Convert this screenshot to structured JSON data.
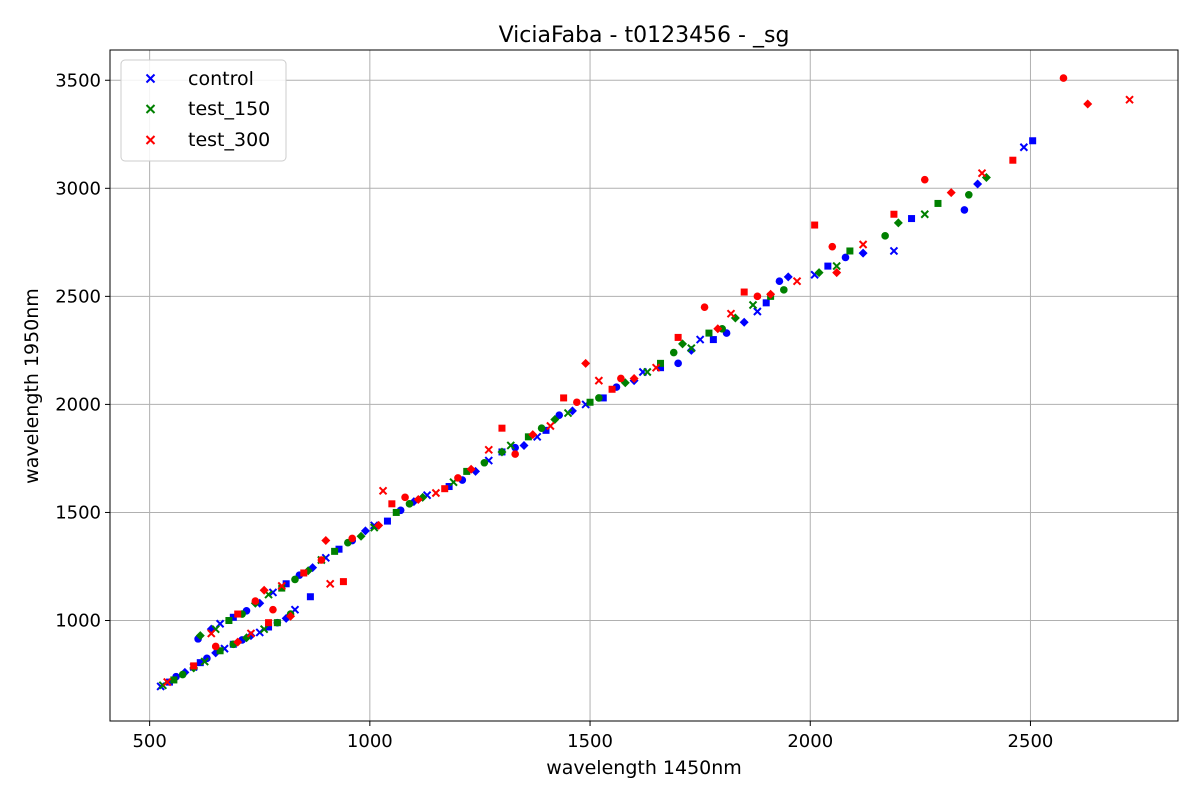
{
  "chart_data": {
    "type": "scatter",
    "title": "ViciaFaba - t0123456 - _sg",
    "xlabel": "wavelength 1450nm",
    "ylabel": "wavelength 1950nm",
    "xlim": [
      410,
      2835
    ],
    "ylim": [
      535,
      3640
    ],
    "xticks": [
      500,
      1000,
      1500,
      2000,
      2500
    ],
    "yticks": [
      1000,
      1500,
      2000,
      2500,
      3000,
      3500
    ],
    "grid": true,
    "legend_position": "top-left",
    "legend": {
      "control": "control",
      "test_150": "test_150",
      "test_300": "test_300"
    },
    "series": [
      {
        "name": "control",
        "color": "#0000ff",
        "points": [
          [
            525,
            695
          ],
          [
            545,
            715
          ],
          [
            560,
            740
          ],
          [
            580,
            760
          ],
          [
            600,
            785
          ],
          [
            615,
            805
          ],
          [
            630,
            825
          ],
          [
            650,
            850
          ],
          [
            670,
            870
          ],
          [
            690,
            890
          ],
          [
            710,
            910
          ],
          [
            730,
            930
          ],
          [
            750,
            945
          ],
          [
            770,
            970
          ],
          [
            790,
            990
          ],
          [
            810,
            1010
          ],
          [
            830,
            1050
          ],
          [
            865,
            1110
          ],
          [
            610,
            915
          ],
          [
            640,
            960
          ],
          [
            660,
            985
          ],
          [
            690,
            1015
          ],
          [
            720,
            1045
          ],
          [
            750,
            1080
          ],
          [
            780,
            1130
          ],
          [
            810,
            1170
          ],
          [
            840,
            1210
          ],
          [
            870,
            1245
          ],
          [
            900,
            1290
          ],
          [
            930,
            1330
          ],
          [
            960,
            1370
          ],
          [
            990,
            1415
          ],
          [
            1010,
            1440
          ],
          [
            1040,
            1460
          ],
          [
            1070,
            1510
          ],
          [
            1100,
            1550
          ],
          [
            1130,
            1580
          ],
          [
            1180,
            1620
          ],
          [
            1210,
            1650
          ],
          [
            1240,
            1690
          ],
          [
            1270,
            1740
          ],
          [
            1300,
            1780
          ],
          [
            1330,
            1800
          ],
          [
            1350,
            1810
          ],
          [
            1380,
            1850
          ],
          [
            1400,
            1880
          ],
          [
            1430,
            1950
          ],
          [
            1460,
            1970
          ],
          [
            1490,
            2000
          ],
          [
            1530,
            2030
          ],
          [
            1560,
            2080
          ],
          [
            1600,
            2110
          ],
          [
            1620,
            2150
          ],
          [
            1660,
            2170
          ],
          [
            1700,
            2190
          ],
          [
            1730,
            2250
          ],
          [
            1750,
            2300
          ],
          [
            1780,
            2300
          ],
          [
            1810,
            2330
          ],
          [
            1850,
            2380
          ],
          [
            1880,
            2430
          ],
          [
            1900,
            2470
          ],
          [
            1930,
            2570
          ],
          [
            1950,
            2590
          ],
          [
            2010,
            2600
          ],
          [
            2040,
            2640
          ],
          [
            2080,
            2680
          ],
          [
            2120,
            2700
          ],
          [
            2190,
            2710
          ],
          [
            2230,
            2860
          ],
          [
            2350,
            2900
          ],
          [
            2380,
            3020
          ],
          [
            2485,
            3190
          ],
          [
            2505,
            3220
          ]
        ]
      },
      {
        "name": "test_150",
        "color": "#008000",
        "points": [
          [
            530,
            700
          ],
          [
            555,
            725
          ],
          [
            575,
            750
          ],
          [
            600,
            780
          ],
          [
            625,
            810
          ],
          [
            660,
            860
          ],
          [
            690,
            890
          ],
          [
            720,
            920
          ],
          [
            760,
            960
          ],
          [
            790,
            990
          ],
          [
            820,
            1030
          ],
          [
            615,
            930
          ],
          [
            650,
            960
          ],
          [
            680,
            1000
          ],
          [
            710,
            1030
          ],
          [
            740,
            1080
          ],
          [
            770,
            1120
          ],
          [
            800,
            1150
          ],
          [
            830,
            1190
          ],
          [
            860,
            1230
          ],
          [
            890,
            1280
          ],
          [
            920,
            1320
          ],
          [
            950,
            1360
          ],
          [
            980,
            1390
          ],
          [
            1010,
            1430
          ],
          [
            1060,
            1500
          ],
          [
            1090,
            1540
          ],
          [
            1120,
            1570
          ],
          [
            1190,
            1640
          ],
          [
            1220,
            1690
          ],
          [
            1260,
            1730
          ],
          [
            1300,
            1780
          ],
          [
            1320,
            1810
          ],
          [
            1360,
            1850
          ],
          [
            1390,
            1890
          ],
          [
            1420,
            1930
          ],
          [
            1450,
            1960
          ],
          [
            1500,
            2010
          ],
          [
            1520,
            2030
          ],
          [
            1580,
            2100
          ],
          [
            1630,
            2150
          ],
          [
            1660,
            2190
          ],
          [
            1690,
            2240
          ],
          [
            1710,
            2280
          ],
          [
            1730,
            2260
          ],
          [
            1770,
            2330
          ],
          [
            1800,
            2350
          ],
          [
            1830,
            2400
          ],
          [
            1870,
            2460
          ],
          [
            1910,
            2500
          ],
          [
            1940,
            2530
          ],
          [
            2020,
            2610
          ],
          [
            2060,
            2640
          ],
          [
            2090,
            2710
          ],
          [
            2170,
            2780
          ],
          [
            2200,
            2840
          ],
          [
            2260,
            2880
          ],
          [
            2290,
            2930
          ],
          [
            2360,
            2970
          ],
          [
            2400,
            3050
          ]
        ]
      },
      {
        "name": "test_300",
        "color": "#ff0000",
        "points": [
          [
            540,
            715
          ],
          [
            600,
            790
          ],
          [
            650,
            880
          ],
          [
            700,
            900
          ],
          [
            730,
            940
          ],
          [
            770,
            990
          ],
          [
            780,
            1050
          ],
          [
            820,
            1020
          ],
          [
            640,
            940
          ],
          [
            700,
            1030
          ],
          [
            740,
            1090
          ],
          [
            760,
            1140
          ],
          [
            800,
            1160
          ],
          [
            850,
            1220
          ],
          [
            890,
            1280
          ],
          [
            900,
            1370
          ],
          [
            910,
            1170
          ],
          [
            940,
            1180
          ],
          [
            960,
            1380
          ],
          [
            1020,
            1440
          ],
          [
            1030,
            1600
          ],
          [
            1050,
            1540
          ],
          [
            1080,
            1570
          ],
          [
            1110,
            1560
          ],
          [
            1150,
            1590
          ],
          [
            1170,
            1610
          ],
          [
            1200,
            1660
          ],
          [
            1230,
            1700
          ],
          [
            1270,
            1790
          ],
          [
            1300,
            1890
          ],
          [
            1330,
            1770
          ],
          [
            1370,
            1860
          ],
          [
            1410,
            1900
          ],
          [
            1440,
            2030
          ],
          [
            1470,
            2010
          ],
          [
            1490,
            2190
          ],
          [
            1520,
            2110
          ],
          [
            1550,
            2070
          ],
          [
            1570,
            2120
          ],
          [
            1600,
            2120
          ],
          [
            1650,
            2170
          ],
          [
            1700,
            2310
          ],
          [
            1760,
            2450
          ],
          [
            1790,
            2350
          ],
          [
            1820,
            2420
          ],
          [
            1850,
            2520
          ],
          [
            1880,
            2500
          ],
          [
            1910,
            2510
          ],
          [
            1970,
            2570
          ],
          [
            2010,
            2830
          ],
          [
            2050,
            2730
          ],
          [
            2060,
            2610
          ],
          [
            2120,
            2740
          ],
          [
            2190,
            2880
          ],
          [
            2260,
            3040
          ],
          [
            2320,
            2980
          ],
          [
            2390,
            3070
          ],
          [
            2460,
            3130
          ],
          [
            2575,
            3510
          ],
          [
            2630,
            3390
          ],
          [
            2725,
            3410
          ]
        ]
      }
    ]
  }
}
